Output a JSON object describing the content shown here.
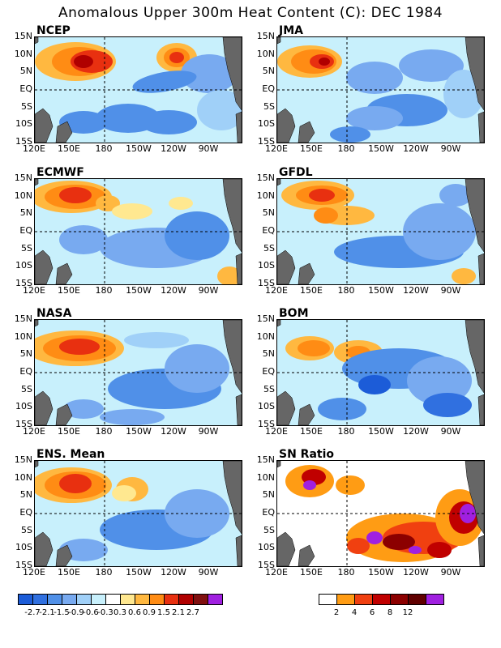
{
  "title": "Anomalous Upper 300m Heat Content (C): DEC 1984",
  "panels": [
    {
      "name": "NCEP"
    },
    {
      "name": "JMA"
    },
    {
      "name": "ECMWF"
    },
    {
      "name": "GFDL"
    },
    {
      "name": "NASA"
    },
    {
      "name": "BOM"
    },
    {
      "name": "ENS. Mean"
    },
    {
      "name": "SN Ratio"
    }
  ],
  "lat_labels": [
    "15N",
    "10N",
    "5N",
    "EQ",
    "5S",
    "10S",
    "15S"
  ],
  "lon_labels": [
    "120E",
    "150E",
    "180",
    "150W",
    "120W",
    "90W"
  ],
  "anomaly_scale": {
    "labels": [
      "-2.7",
      "-2.1",
      "-1.5",
      "-0.9",
      "-0.6",
      "-0.3",
      "0.3",
      "0.6",
      "0.9",
      "1.5",
      "2.1",
      "2.7"
    ],
    "colors": [
      "#1c5cd8",
      "#3070e0",
      "#5090e8",
      "#78aaf0",
      "#a0d0f8",
      "#c8f0fc",
      "#ffffff",
      "#ffe890",
      "#ffb840",
      "#ff8c14",
      "#e83010",
      "#b00000",
      "#801010",
      "#a020e0"
    ]
  },
  "sn_scale": {
    "labels": [
      "2",
      "4",
      "6",
      "8",
      "12"
    ],
    "colors": [
      "#ffffff",
      "#ff9c14",
      "#f04010",
      "#c00000",
      "#8c0000",
      "#600000",
      "#a020e0"
    ]
  }
}
